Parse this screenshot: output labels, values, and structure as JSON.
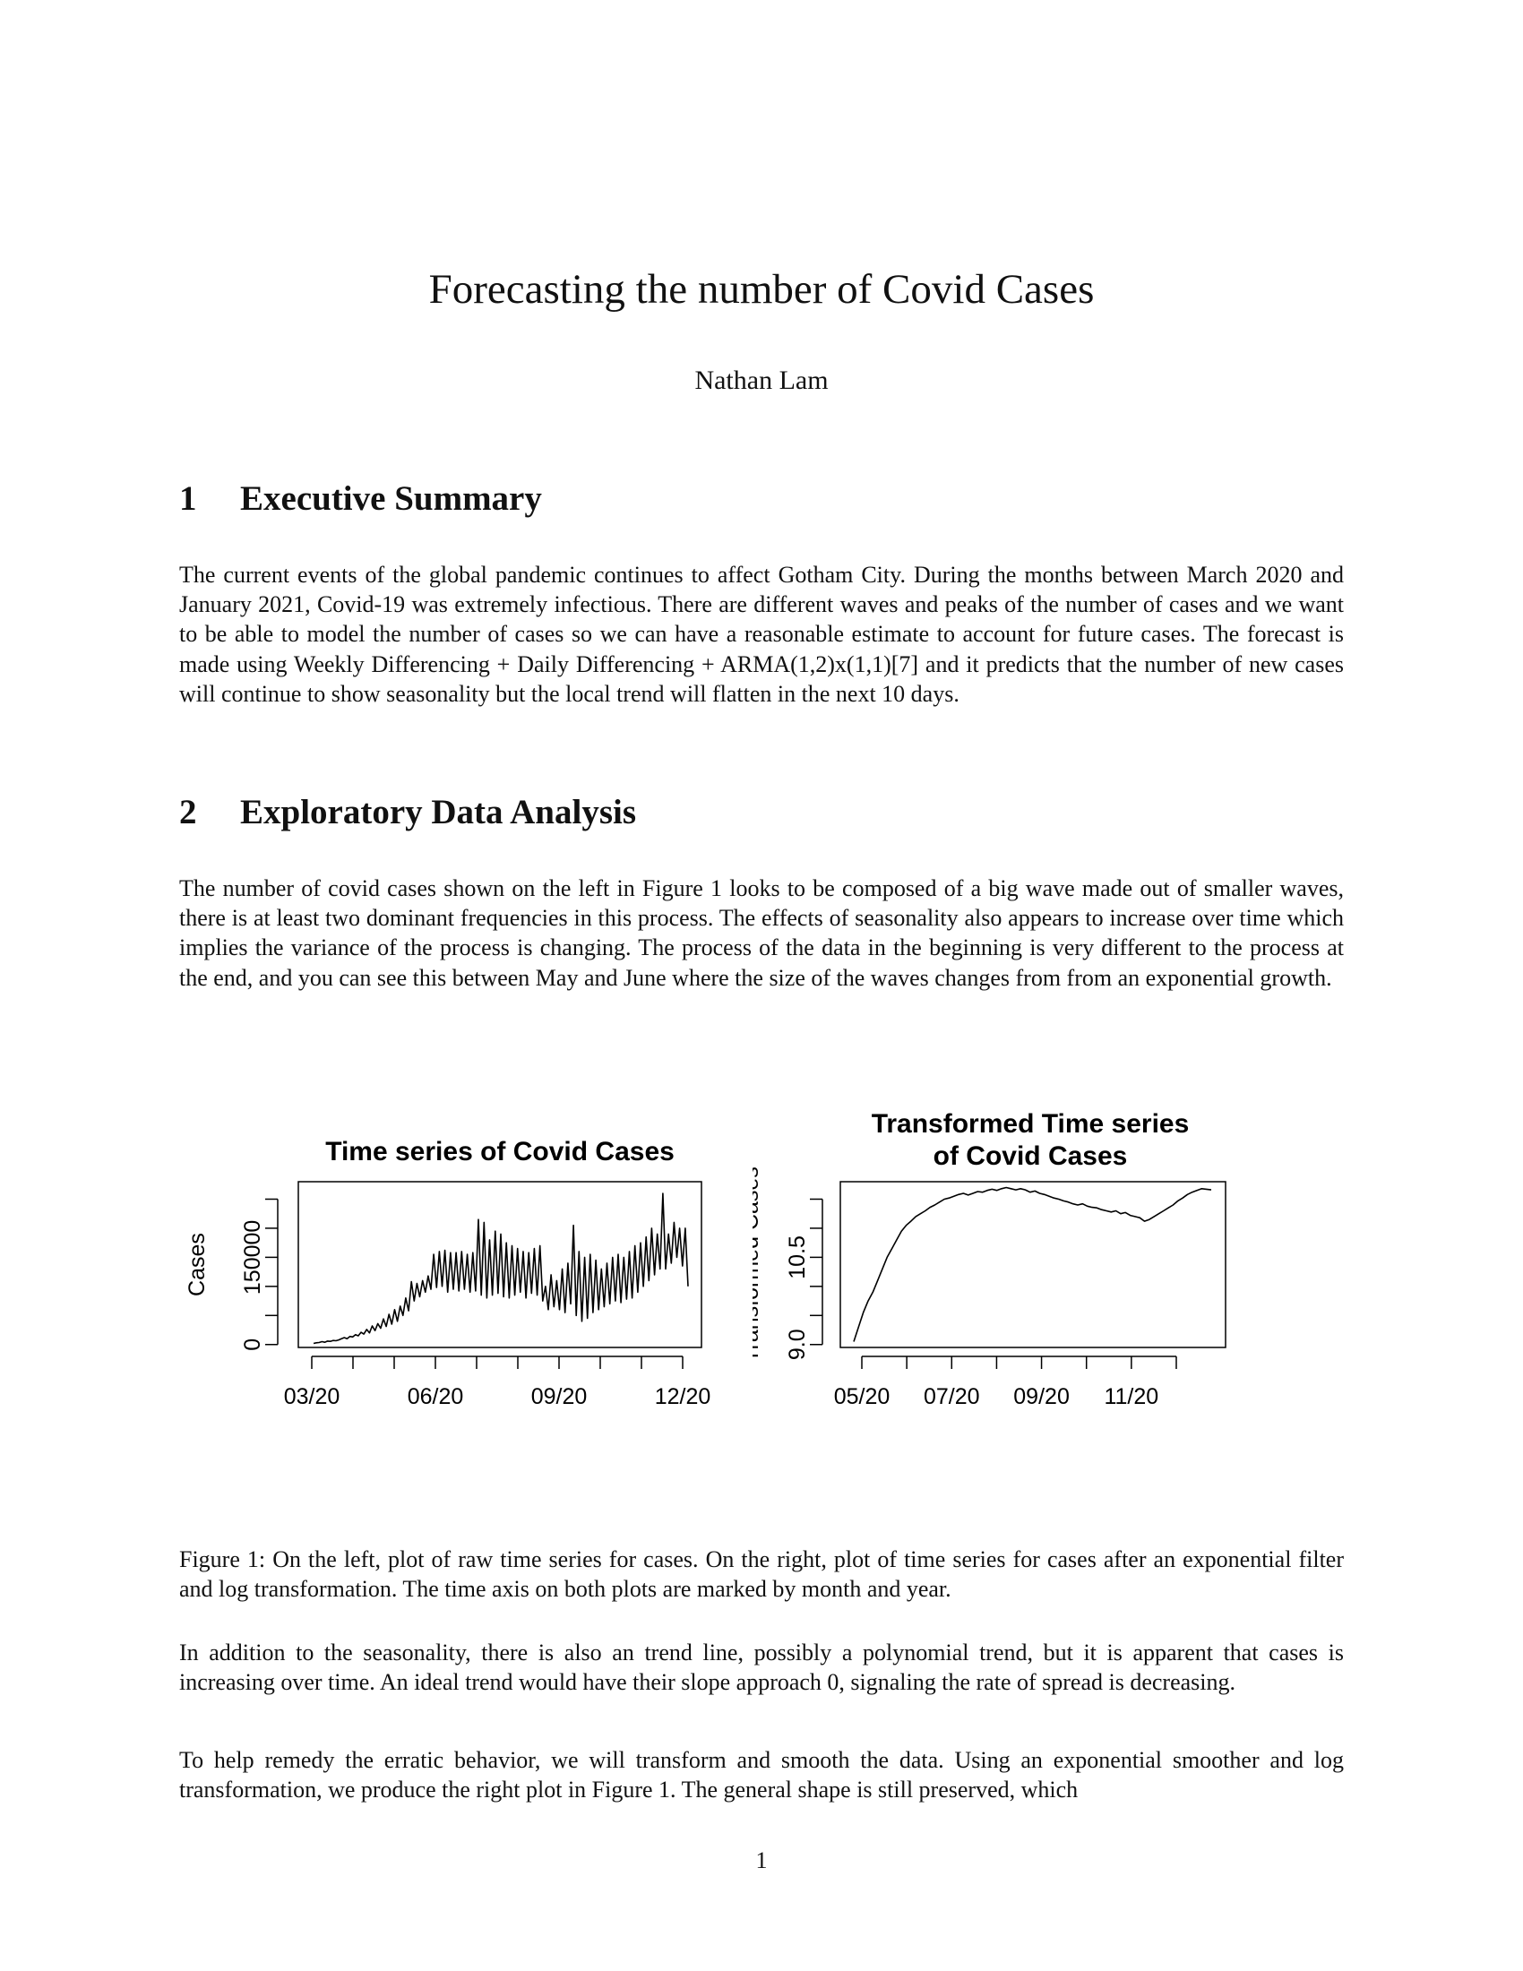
{
  "paper": {
    "title": "Forecasting the number of Covid Cases",
    "author": "Nathan Lam"
  },
  "sections": [
    {
      "number": "1",
      "heading": "Executive Summary",
      "paragraphs": [
        "The current events of the global pandemic continues to affect Gotham City. During the months between March 2020 and January 2021, Covid-19 was extremely infectious. There are different waves and peaks of the number of cases and we want to be able to model the number of cases so we can have a reasonable estimate to account for future cases. The forecast is made using Weekly Differencing + Daily Differencing + ARMA(1,2)x(1,1)[7] and it predicts that the number of new cases will continue to show seasonality but the local trend will flatten in the next 10 days."
      ]
    },
    {
      "number": "2",
      "heading": "Exploratory Data Analysis",
      "paragraphs": [
        "The number of covid cases shown on the left in Figure 1 looks to be composed of a big wave made out of smaller waves, there is at least two dominant frequencies in this process. The effects of seasonality also appears to increase over time which implies the variance of the process is changing. The process of the data in the beginning is very different to the process at the end, and you can see this between May and June where the size of the waves changes from from an exponential growth.",
        "In addition to the seasonality, there is also an trend line, possibly a polynomial trend, but it is apparent that cases is increasing over time. An ideal trend would have their slope approach 0, signaling the rate of spread is decreasing.",
        "To help remedy the erratic behavior, we will transform and smooth the data. Using an exponential smoother and log transformation, we produce the right plot in Figure 1. The general shape is still preserved, which"
      ]
    }
  ],
  "figure": {
    "caption": "Figure 1: On the left, plot of raw time series for cases. On the right, plot of time series for cases after an exponential filter and log transformation. The time axis on both plots are marked by month and year."
  },
  "chart_data": [
    {
      "type": "line",
      "title": "Time series of Covid Cases",
      "xlabel": "",
      "ylabel": "Cases",
      "x_tick_labels": [
        "03/20",
        "06/20",
        "09/20",
        "12/20"
      ],
      "y_tick_labels": [
        "0",
        "150000"
      ],
      "y_labeled_ticks": [
        0,
        150000
      ],
      "y_ticks": [
        0,
        50000,
        100000,
        150000,
        200000,
        250000
      ],
      "x_tick_count": 10,
      "ylim": [
        -5000,
        280000
      ],
      "grid": false,
      "x_day_start": 0,
      "x_day_end": 320,
      "series": [
        {
          "values": [
            2000,
            3000,
            3500,
            5000,
            4000,
            6000,
            5500,
            7000,
            6500,
            8000,
            10000,
            12000,
            10000,
            14000,
            13000,
            17000,
            15000,
            21000,
            18000,
            26000,
            20000,
            32000,
            24000,
            36000,
            28000,
            44000,
            31000,
            52000,
            35000,
            60000,
            40000,
            66000,
            50000,
            80000,
            58000,
            108000,
            75000,
            105000,
            82000,
            110000,
            90000,
            118000,
            95000,
            155000,
            98000,
            160000,
            100000,
            162000,
            90000,
            158000,
            95000,
            158000,
            92000,
            160000,
            95000,
            155000,
            90000,
            158000,
            92000,
            215000,
            85000,
            210000,
            80000,
            180000,
            85000,
            195000,
            88000,
            190000,
            82000,
            175000,
            80000,
            170000,
            85000,
            165000,
            90000,
            160000,
            80000,
            158000,
            88000,
            165000,
            85000,
            170000,
            75000,
            100000,
            60000,
            120000,
            65000,
            110000,
            60000,
            130000,
            55000,
            140000,
            70000,
            205000,
            50000,
            160000,
            40000,
            150000,
            45000,
            155000,
            55000,
            145000,
            60000,
            130000,
            65000,
            140000,
            70000,
            150000,
            75000,
            155000,
            72000,
            150000,
            78000,
            160000,
            80000,
            170000,
            90000,
            175000,
            100000,
            185000,
            110000,
            200000,
            120000,
            190000,
            130000,
            260000,
            130000,
            190000,
            140000,
            210000,
            150000,
            200000,
            135000,
            200000,
            100000
          ]
        }
      ]
    },
    {
      "type": "line",
      "title": "Transformed Time series\nof Covid Cases",
      "xlabel": "",
      "ylabel": "Transformed Cases",
      "x_tick_labels": [
        "05/20",
        "07/20",
        "09/20",
        "11/20"
      ],
      "y_tick_labels": [
        "9.0",
        "10.5"
      ],
      "y_labeled_ticks": [
        9.0,
        10.5
      ],
      "y_ticks": [
        9.0,
        9.5,
        10.0,
        10.5,
        11.0,
        11.5
      ],
      "x_tick_count": 8,
      "ylim": [
        8.95,
        11.8
      ],
      "grid": false,
      "series": [
        {
          "values": [
            9.05,
            9.3,
            9.55,
            9.75,
            9.9,
            10.1,
            10.3,
            10.5,
            10.65,
            10.8,
            10.95,
            11.05,
            11.12,
            11.2,
            11.25,
            11.3,
            11.36,
            11.4,
            11.45,
            11.5,
            11.52,
            11.55,
            11.58,
            11.6,
            11.57,
            11.6,
            11.63,
            11.62,
            11.65,
            11.67,
            11.65,
            11.68,
            11.7,
            11.68,
            11.66,
            11.68,
            11.66,
            11.62,
            11.64,
            11.6,
            11.58,
            11.55,
            11.52,
            11.5,
            11.47,
            11.45,
            11.42,
            11.4,
            11.42,
            11.38,
            11.36,
            11.35,
            11.32,
            11.3,
            11.28,
            11.3,
            11.25,
            11.27,
            11.22,
            11.2,
            11.18,
            11.12,
            11.15,
            11.2,
            11.25,
            11.3,
            11.35,
            11.4,
            11.47,
            11.52,
            11.58,
            11.62,
            11.65,
            11.68,
            11.67,
            11.66
          ]
        }
      ]
    }
  ],
  "page_number": "1"
}
